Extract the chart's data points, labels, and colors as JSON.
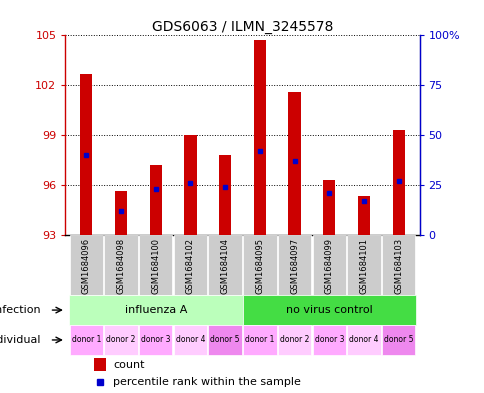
{
  "title": "GDS6063 / ILMN_3245578",
  "samples": [
    "GSM1684096",
    "GSM1684098",
    "GSM1684100",
    "GSM1684102",
    "GSM1684104",
    "GSM1684095",
    "GSM1684097",
    "GSM1684099",
    "GSM1684101",
    "GSM1684103"
  ],
  "count_values": [
    102.7,
    95.6,
    97.2,
    99.0,
    97.8,
    104.7,
    101.6,
    96.3,
    95.3,
    99.3
  ],
  "percentile_values": [
    40,
    12,
    23,
    26,
    24,
    42,
    37,
    21,
    17,
    27
  ],
  "ylim_left": [
    93,
    105
  ],
  "ylim_right": [
    0,
    100
  ],
  "yticks_left": [
    93,
    96,
    99,
    102,
    105
  ],
  "yticks_right": [
    0,
    25,
    50,
    75,
    100
  ],
  "ytick_labels_right": [
    "0",
    "25",
    "50",
    "75",
    "100%"
  ],
  "bar_color": "#cc0000",
  "percentile_color": "#0000cc",
  "grid_color": "black",
  "infection_groups": [
    {
      "label": "influenza A",
      "start": 0,
      "end": 5,
      "color": "#bbffbb"
    },
    {
      "label": "no virus control",
      "start": 5,
      "end": 10,
      "color": "#44dd44"
    }
  ],
  "individual_labels": [
    "donor 1",
    "donor 2",
    "donor 3",
    "donor 4",
    "donor 5",
    "donor 1",
    "donor 2",
    "donor 3",
    "donor 4",
    "donor 5"
  ],
  "individual_colors": [
    "#ffaaff",
    "#ffccff",
    "#ffaaff",
    "#ffccff",
    "#ee88ee",
    "#ffaaff",
    "#ffccff",
    "#ffaaff",
    "#ffccff",
    "#ee88ee"
  ],
  "infection_label": "infection",
  "individual_label": "individual",
  "legend_count_label": "count",
  "legend_percentile_label": "percentile rank within the sample",
  "bar_width": 0.35,
  "base_value": 93,
  "xtick_bg_color": "#cccccc"
}
